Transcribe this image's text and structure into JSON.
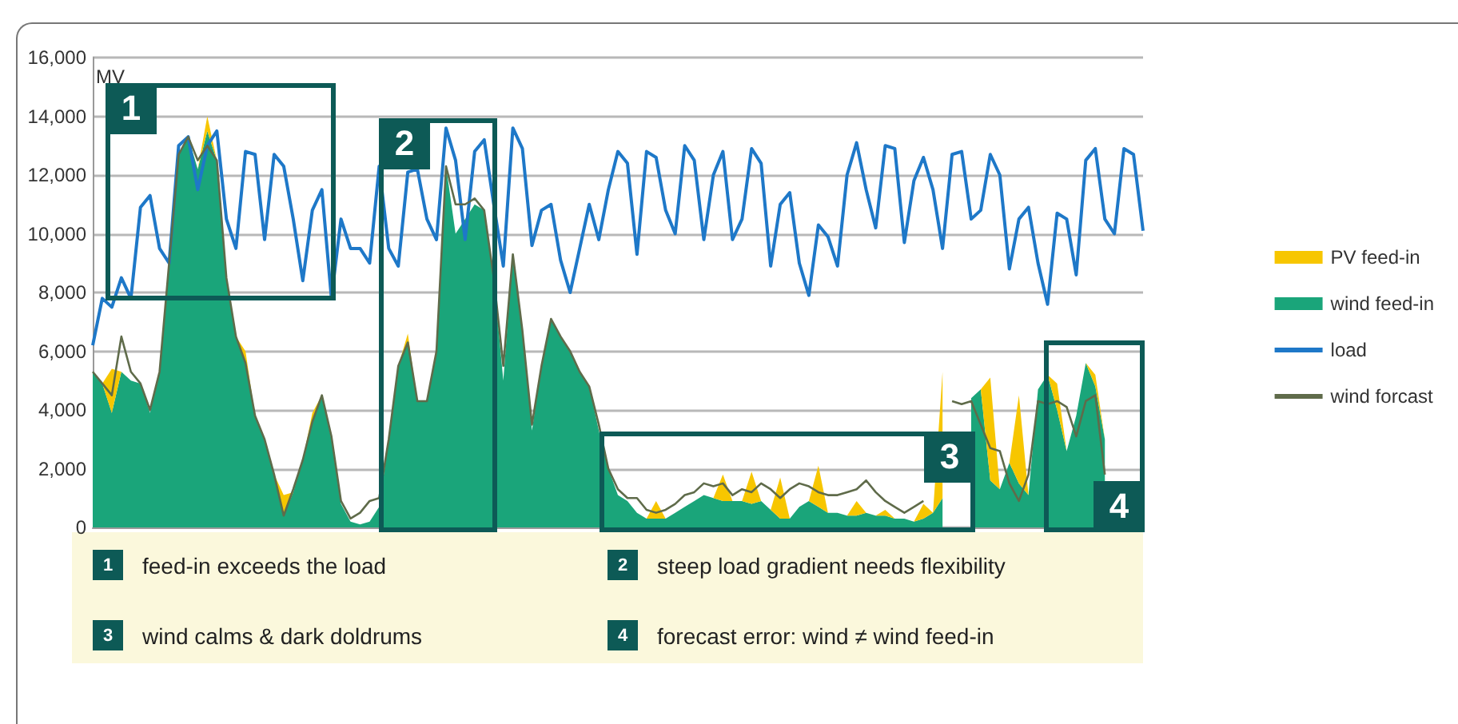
{
  "chart_data": {
    "type": "area",
    "ylabel": "MV",
    "categories": [
      null,
      null,
      null,
      null,
      null,
      null,
      null,
      null,
      null,
      null,
      null,
      null,
      null,
      null,
      null,
      null,
      null,
      null,
      null,
      null,
      null,
      null,
      null,
      null,
      null,
      null,
      null,
      null,
      null,
      null,
      null,
      null,
      null,
      null,
      null,
      null,
      null,
      null,
      null,
      null,
      null,
      null,
      null,
      null,
      null,
      null,
      null,
      null,
      null,
      null,
      null,
      null,
      null,
      null,
      null,
      null,
      null,
      null,
      null,
      null,
      null,
      null,
      null,
      null,
      null,
      null,
      null,
      null,
      null,
      null,
      null,
      null,
      null,
      null,
      null,
      null,
      null,
      null,
      null,
      null,
      null,
      null,
      null,
      null,
      null,
      null,
      null,
      null,
      null,
      null,
      null,
      null,
      null,
      null,
      null,
      null,
      null,
      null,
      null,
      null,
      null,
      null,
      null,
      null,
      null,
      null,
      null,
      null,
      null,
      null,
      null
    ],
    "stacked": true,
    "series": [
      {
        "name": "wind feed-in",
        "color": "#1aa57a",
        "values": [
          5300,
          4900,
          3900,
          5300,
          5000,
          4900,
          3900,
          5300,
          9000,
          12700,
          13300,
          12200,
          13500,
          12500,
          8500,
          6500,
          5600,
          3800,
          3000,
          1800,
          400,
          1200,
          2300,
          3600,
          4500,
          3000,
          800,
          200,
          100,
          200,
          700,
          3000,
          5500,
          6300,
          4300,
          4300,
          6000,
          12300,
          10000,
          10500,
          11000,
          10800,
          8500,
          5000,
          9300,
          6700,
          3300,
          5500,
          7100,
          6500,
          6000,
          5300,
          4800,
          3300,
          2000,
          1100,
          900,
          500,
          300,
          300,
          300,
          500,
          700,
          900,
          1100,
          1000,
          900,
          900,
          900,
          800,
          900,
          600,
          300,
          300,
          700,
          900,
          700,
          500,
          500,
          400,
          400,
          500,
          400,
          400,
          300,
          300,
          200,
          300,
          500,
          1000,
          null,
          null,
          4400,
          4700,
          1600,
          1300,
          2200,
          1500,
          1100,
          4700,
          5200,
          4000,
          2600,
          3800,
          5600,
          4800,
          3000,
          null,
          null,
          null,
          null
        ]
      },
      {
        "name": "PV feed-in",
        "color": "#f7c600",
        "values": [
          0,
          0,
          1500,
          0,
          0,
          0,
          0,
          0,
          0,
          0,
          0,
          0,
          500,
          0,
          0,
          0,
          400,
          0,
          0,
          0,
          700,
          0,
          0,
          300,
          0,
          0,
          0,
          0,
          0,
          0,
          0,
          0,
          0,
          300,
          0,
          0,
          0,
          0,
          0,
          0,
          0,
          0,
          0,
          0,
          0,
          0,
          0,
          0,
          0,
          0,
          0,
          0,
          0,
          0,
          0,
          0,
          0,
          0,
          0,
          600,
          0,
          0,
          0,
          0,
          0,
          0,
          900,
          0,
          0,
          1100,
          0,
          0,
          1400,
          0,
          0,
          0,
          1400,
          0,
          0,
          0,
          500,
          0,
          0,
          200,
          0,
          0,
          0,
          500,
          0,
          4300,
          null,
          null,
          0,
          0,
          3500,
          0,
          0,
          3000,
          0,
          0,
          0,
          900,
          0,
          0,
          0,
          400,
          0,
          null,
          null,
          null,
          null
        ]
      },
      {
        "name": "load",
        "type": "line",
        "color": "#1e78c8",
        "values": [
          6200,
          7800,
          7500,
          8500,
          7800,
          10900,
          11300,
          9500,
          9000,
          13000,
          13300,
          11500,
          13000,
          13500,
          10500,
          9500,
          12800,
          12700,
          9800,
          12700,
          12300,
          10500,
          8400,
          10800,
          11500,
          7800,
          10500,
          9500,
          9500,
          9000,
          12300,
          9500,
          8900,
          12100,
          12200,
          10500,
          9800,
          13600,
          12500,
          9800,
          12800,
          13200,
          11000,
          8900,
          13600,
          12900,
          9600,
          10800,
          11000,
          9100,
          8000,
          9500,
          11000,
          9800,
          11500,
          12800,
          12400,
          9300,
          12800,
          12600,
          10800,
          10000,
          13000,
          12500,
          9800,
          12000,
          12800,
          9800,
          10500,
          12900,
          12400,
          8900,
          11000,
          11400,
          9000,
          7900,
          10300,
          9900,
          8900,
          12000,
          13100,
          11500,
          10200,
          13000,
          12900,
          9700,
          11800,
          12600,
          11500,
          9500,
          12700,
          12800,
          10500,
          10800,
          12700,
          12000,
          8800,
          10500,
          10900,
          9000,
          7600,
          10700,
          10500,
          8600,
          12500,
          12900,
          10500,
          10000,
          12900,
          12700,
          10100
        ]
      },
      {
        "name": "wind forcast",
        "type": "line",
        "color": "#5f6b4a",
        "values": [
          5300,
          4900,
          4500,
          6500,
          5300,
          4900,
          4000,
          5300,
          9000,
          12700,
          13300,
          12500,
          13000,
          12500,
          8500,
          6500,
          5600,
          3800,
          3000,
          1800,
          400,
          1300,
          2300,
          3600,
          4500,
          3100,
          900,
          300,
          500,
          900,
          1000,
          3000,
          5500,
          6300,
          4300,
          4300,
          6000,
          12300,
          11000,
          11000,
          11200,
          10800,
          8500,
          5500,
          9300,
          6700,
          3500,
          5500,
          7100,
          6500,
          6000,
          5300,
          4800,
          3500,
          2000,
          1300,
          1000,
          1000,
          600,
          500,
          600,
          800,
          1100,
          1200,
          1500,
          1400,
          1500,
          1100,
          1300,
          1200,
          1500,
          1300,
          1000,
          1300,
          1500,
          1400,
          1200,
          1100,
          1100,
          1200,
          1300,
          1600,
          1200,
          900,
          700,
          500,
          700,
          900,
          null,
          null,
          4300,
          4200,
          4300,
          3500,
          2700,
          2600,
          1500,
          900,
          1800,
          4300,
          4200,
          4300,
          4100,
          3100,
          4300,
          4500,
          1800,
          null,
          null,
          null,
          null
        ]
      }
    ],
    "ylim": [
      0,
      16000
    ],
    "yticks": [
      {
        "value": 0,
        "label": "0"
      },
      {
        "value": 2000,
        "label": "2,000"
      },
      {
        "value": 4000,
        "label": "4,000"
      },
      {
        "value": 6000,
        "label": "6,000"
      },
      {
        "value": 8000,
        "label": "8,000"
      },
      {
        "value": 10000,
        "label": "10,000"
      },
      {
        "value": 12000,
        "label": "12,000"
      },
      {
        "value": 14000,
        "label": "14,000"
      },
      {
        "value": 16000,
        "label": "16,000"
      }
    ],
    "grid": "y",
    "legend": "right",
    "marker": "none",
    "tick_labels": "y",
    "annotations": [
      "1",
      "feed-in exceeds the load",
      "2",
      "steep load gradient needs flexibility",
      "3",
      "wind calms & dark doldrums",
      "4",
      "forecast error: wind ≠ wind feed-in"
    ]
  }
}
